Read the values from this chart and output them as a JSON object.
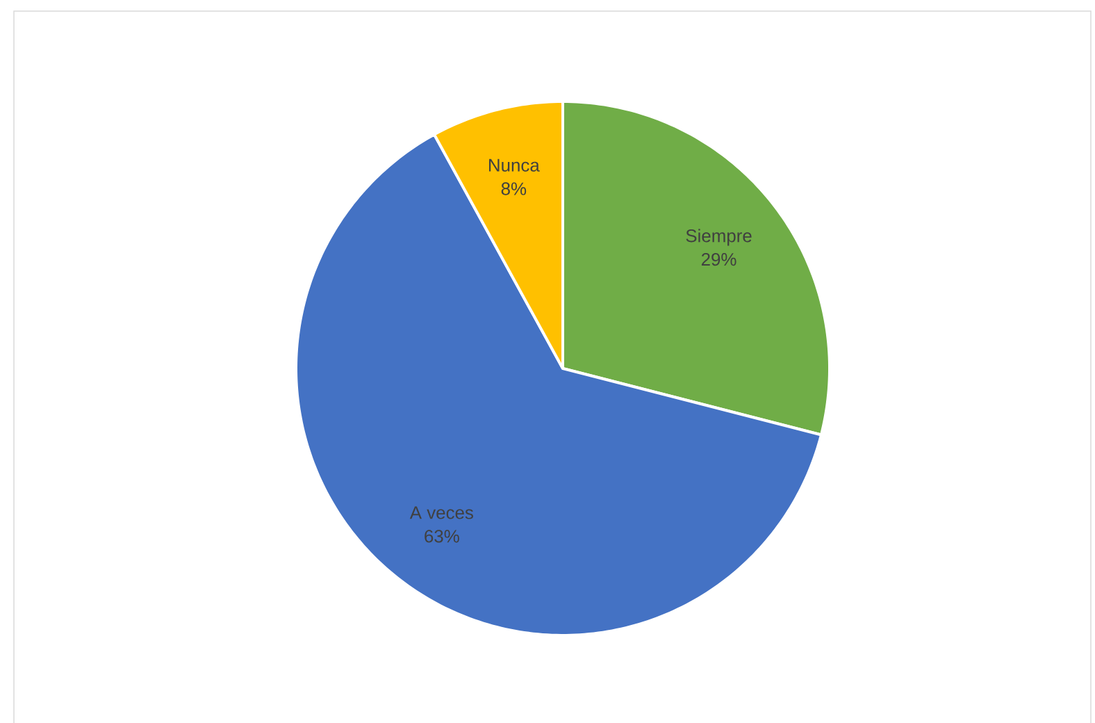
{
  "chart_data": {
    "type": "pie",
    "categories": [
      "Siempre",
      "A veces",
      "Nunca"
    ],
    "values": [
      29,
      63,
      8
    ],
    "value_labels": [
      "29%",
      "63%",
      "8%"
    ],
    "colors": [
      "#70ad47",
      "#4472c4",
      "#ffc000"
    ]
  }
}
